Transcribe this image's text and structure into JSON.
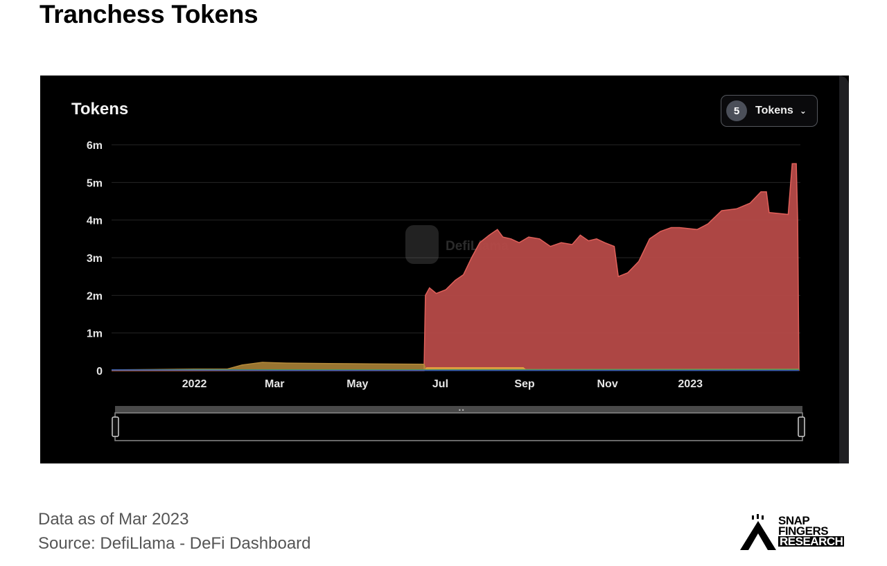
{
  "page": {
    "title": "Tranchess Tokens",
    "footer_date": "Data as of Mar 2023",
    "footer_source": "Source: DefiLlama - DeFi Dashboard"
  },
  "panel": {
    "title": "Tokens",
    "selector_count": "5",
    "selector_label": "Tokens",
    "watermark": "DefiLlama"
  },
  "logo": {
    "line1": "SNAP",
    "line2": "FINGERS",
    "line3": "RESEARCH"
  },
  "colors": {
    "panel_bg": "#000000",
    "main_series": "#b64a48",
    "main_series_line": "#e0605a",
    "gold_series": "#b48a3a",
    "orange_series": "#e0a040",
    "green_series": "#4a9a5a",
    "blue_series": "#3a5ab0"
  },
  "chart_data": {
    "type": "area",
    "title": "Tokens",
    "ytick_labels": [
      "0",
      "1m",
      "2m",
      "3m",
      "4m",
      "5m",
      "6m"
    ],
    "yticks": [
      0,
      1000000,
      2000000,
      3000000,
      4000000,
      5000000,
      6000000
    ],
    "ylim": [
      0,
      6000000
    ],
    "xlim": [
      "2021-11-01",
      "2023-03-23"
    ],
    "xtick_labels": [
      "2022",
      "Mar",
      "May",
      "Jul",
      "Sep",
      "Nov",
      "2023"
    ],
    "xticks": [
      "2022-01-01",
      "2022-03-01",
      "2022-05-01",
      "2022-07-01",
      "2022-09-01",
      "2022-11-01",
      "2023-01-01"
    ],
    "grid": true,
    "legend": "none",
    "series": [
      {
        "color": "#b64a48",
        "points": [
          [
            "2021-11-01",
            0
          ],
          [
            "2022-06-19",
            0
          ],
          [
            "2022-06-20",
            2000000
          ],
          [
            "2022-06-23",
            2200000
          ],
          [
            "2022-06-28",
            2050000
          ],
          [
            "2022-07-05",
            2150000
          ],
          [
            "2022-07-12",
            2400000
          ],
          [
            "2022-07-18",
            2550000
          ],
          [
            "2022-07-24",
            3000000
          ],
          [
            "2022-07-30",
            3400000
          ],
          [
            "2022-08-06",
            3600000
          ],
          [
            "2022-08-12",
            3750000
          ],
          [
            "2022-08-16",
            3550000
          ],
          [
            "2022-08-22",
            3500000
          ],
          [
            "2022-08-28",
            3400000
          ],
          [
            "2022-09-04",
            3550000
          ],
          [
            "2022-09-12",
            3500000
          ],
          [
            "2022-09-20",
            3300000
          ],
          [
            "2022-09-28",
            3400000
          ],
          [
            "2022-10-06",
            3350000
          ],
          [
            "2022-10-12",
            3600000
          ],
          [
            "2022-10-18",
            3450000
          ],
          [
            "2022-10-24",
            3500000
          ],
          [
            "2022-10-30",
            3400000
          ],
          [
            "2022-11-06",
            3300000
          ],
          [
            "2022-11-09",
            2500000
          ],
          [
            "2022-11-16",
            2600000
          ],
          [
            "2022-11-24",
            2900000
          ],
          [
            "2022-12-02",
            3500000
          ],
          [
            "2022-12-10",
            3700000
          ],
          [
            "2022-12-18",
            3800000
          ],
          [
            "2022-12-24",
            3800000
          ],
          [
            "2023-01-06",
            3750000
          ],
          [
            "2023-01-14",
            3900000
          ],
          [
            "2023-01-24",
            4250000
          ],
          [
            "2023-02-04",
            4300000
          ],
          [
            "2023-02-14",
            4450000
          ],
          [
            "2023-02-22",
            4750000
          ],
          [
            "2023-02-26",
            4750000
          ],
          [
            "2023-02-28",
            4200000
          ],
          [
            "2023-03-14",
            4150000
          ],
          [
            "2023-03-17",
            5500000
          ],
          [
            "2023-03-20",
            5500000
          ],
          [
            "2023-03-21",
            4000000
          ],
          [
            "2023-03-22",
            0
          ]
        ]
      },
      {
        "color": "#b48a3a",
        "points": [
          [
            "2021-11-01",
            20000
          ],
          [
            "2021-12-01",
            30000
          ],
          [
            "2022-01-01",
            40000
          ],
          [
            "2022-01-25",
            40000
          ],
          [
            "2022-02-05",
            150000
          ],
          [
            "2022-02-20",
            220000
          ],
          [
            "2022-03-10",
            200000
          ],
          [
            "2022-04-10",
            190000
          ],
          [
            "2022-05-10",
            180000
          ],
          [
            "2022-06-19",
            170000
          ],
          [
            "2022-06-20",
            60000
          ],
          [
            "2022-08-31",
            50000
          ],
          [
            "2022-09-02",
            30000
          ],
          [
            "2023-03-22",
            40000
          ]
        ]
      },
      {
        "color": "#e0a040",
        "points": [
          [
            "2021-11-01",
            10000
          ],
          [
            "2022-06-20",
            10000
          ],
          [
            "2022-06-21",
            80000
          ],
          [
            "2022-08-31",
            80000
          ],
          [
            "2022-09-02",
            15000
          ],
          [
            "2023-03-22",
            15000
          ]
        ]
      },
      {
        "color": "#4a9a5a",
        "points": [
          [
            "2021-11-01",
            15000
          ],
          [
            "2022-01-01",
            25000
          ],
          [
            "2022-06-01",
            20000
          ],
          [
            "2022-09-01",
            25000
          ],
          [
            "2023-03-22",
            30000
          ]
        ]
      },
      {
        "color": "#3a5ab0",
        "points": [
          [
            "2021-11-01",
            20000
          ],
          [
            "2021-12-20",
            15000
          ],
          [
            "2022-03-01",
            5000
          ],
          [
            "2023-03-22",
            5000
          ]
        ]
      }
    ]
  }
}
